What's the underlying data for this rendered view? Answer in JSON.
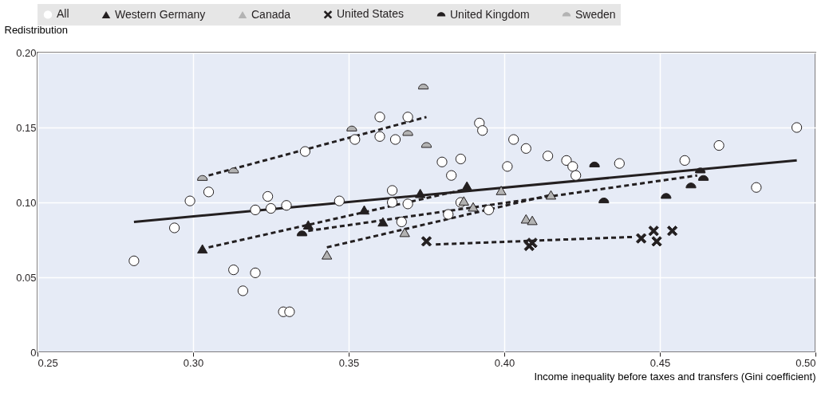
{
  "chart_data": {
    "type": "scatter",
    "xlabel": "Income inequality before taxes and transfers (Gini coefficient)",
    "ylabel": "Redistribution",
    "xlim": [
      0.25,
      0.5
    ],
    "ylim": [
      0,
      0.2
    ],
    "xticks": [
      {
        "value": 0.25,
        "label": "0.25"
      },
      {
        "value": 0.3,
        "label": "0.30"
      },
      {
        "value": 0.35,
        "label": "0.35"
      },
      {
        "value": 0.4,
        "label": "0.40"
      },
      {
        "value": 0.45,
        "label": "0.45"
      },
      {
        "value": 0.5,
        "label": "0.50"
      }
    ],
    "yticks": [
      {
        "value": 0,
        "label": "0"
      },
      {
        "value": 0.05,
        "label": "0.05"
      },
      {
        "value": 0.1,
        "label": "0.10"
      },
      {
        "value": 0.15,
        "label": "0.15"
      },
      {
        "value": 0.2,
        "label": "0.20"
      }
    ],
    "grid": true,
    "legend": "top",
    "series": [
      {
        "type": "line",
        "line_style": "solid",
        "color": "#231f20",
        "x": [
          0.281,
          0.494
        ],
        "values": [
          0.087,
          0.128
        ]
      },
      {
        "type": "line",
        "line_style": "dashed",
        "color": "#231f20",
        "x": [
          0.305,
          0.375
        ],
        "values": [
          0.118,
          0.157
        ]
      },
      {
        "type": "line",
        "line_style": "dashed",
        "color": "#231f20",
        "x": [
          0.305,
          0.388
        ],
        "values": [
          0.07,
          0.109
        ]
      },
      {
        "type": "line",
        "line_style": "dashed",
        "color": "#231f20",
        "x": [
          0.337,
          0.462
        ],
        "values": [
          0.081,
          0.118
        ]
      },
      {
        "type": "line",
        "line_style": "dashed",
        "color": "#231f20",
        "x": [
          0.343,
          0.415
        ],
        "values": [
          0.07,
          0.105
        ]
      },
      {
        "type": "line",
        "line_style": "dashed",
        "color": "#231f20",
        "x": [
          0.378,
          0.442
        ],
        "values": [
          0.072,
          0.077
        ]
      },
      {
        "name": "All",
        "marker": "circle",
        "color": "#ffffff",
        "x": [
          0.281,
          0.294,
          0.299,
          0.305,
          0.313,
          0.32,
          0.316,
          0.329,
          0.331,
          0.32,
          0.324,
          0.325,
          0.33,
          0.347,
          0.336,
          0.352,
          0.36,
          0.36,
          0.365,
          0.369,
          0.364,
          0.364,
          0.369,
          0.367,
          0.386,
          0.382,
          0.395,
          0.38,
          0.386,
          0.383,
          0.392,
          0.393,
          0.401,
          0.403,
          0.407,
          0.414,
          0.42,
          0.422,
          0.423,
          0.437,
          0.458,
          0.469,
          0.481,
          0.494
        ],
        "values": [
          0.061,
          0.083,
          0.101,
          0.107,
          0.055,
          0.053,
          0.041,
          0.027,
          0.027,
          0.095,
          0.104,
          0.096,
          0.098,
          0.101,
          0.134,
          0.142,
          0.157,
          0.144,
          0.142,
          0.157,
          0.108,
          0.1,
          0.099,
          0.087,
          0.1,
          0.092,
          0.095,
          0.127,
          0.129,
          0.118,
          0.153,
          0.148,
          0.124,
          0.142,
          0.136,
          0.131,
          0.128,
          0.124,
          0.118,
          0.126,
          0.128,
          0.138,
          0.11,
          0.15
        ]
      },
      {
        "name": "Western Germany",
        "marker": "triangle",
        "color": "#231f20",
        "x": [
          0.303,
          0.337,
          0.355,
          0.361,
          0.373,
          0.388
        ],
        "values": [
          0.069,
          0.085,
          0.095,
          0.087,
          0.106,
          0.111
        ]
      },
      {
        "name": "Canada",
        "marker": "triangle",
        "color": "#b3b3b3",
        "x": [
          0.343,
          0.368,
          0.387,
          0.39,
          0.399,
          0.407,
          0.409,
          0.415
        ],
        "values": [
          0.065,
          0.08,
          0.101,
          0.097,
          0.108,
          0.089,
          0.088,
          0.105
        ]
      },
      {
        "name": "United States",
        "marker": "cross",
        "color": "#231f20",
        "x": [
          0.375,
          0.408,
          0.409,
          0.444,
          0.448,
          0.449,
          0.454
        ],
        "values": [
          0.074,
          0.071,
          0.073,
          0.076,
          0.081,
          0.074,
          0.081
        ]
      },
      {
        "name": "United Kingdom",
        "marker": "half-circle",
        "color": "#231f20",
        "x": [
          0.335,
          0.429,
          0.432,
          0.452,
          0.46,
          0.463,
          0.464
        ],
        "values": [
          0.079,
          0.125,
          0.101,
          0.104,
          0.111,
          0.121,
          0.116
        ]
      },
      {
        "name": "Sweden",
        "marker": "half-circle",
        "color": "#b3b3b3",
        "x": [
          0.303,
          0.313,
          0.351,
          0.369,
          0.374,
          0.375
        ],
        "values": [
          0.116,
          0.121,
          0.149,
          0.146,
          0.177,
          0.138
        ]
      }
    ]
  }
}
